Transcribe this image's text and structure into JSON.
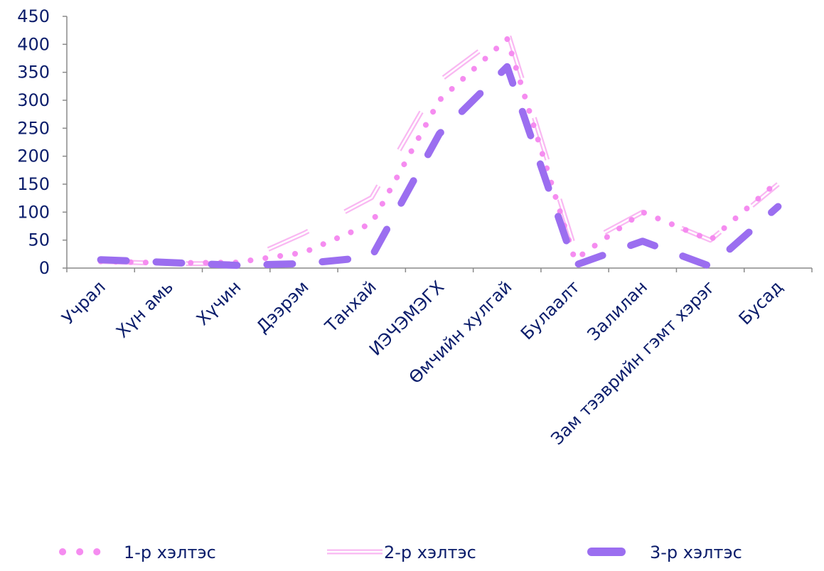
{
  "chart_data": {
    "type": "line",
    "categories": [
      "Учрал",
      "Хүн амь",
      "Хүчин",
      "Дээрэм",
      "Танхай",
      "ИЭЧЭМЭГХ",
      "Өмчийн хулгай",
      "Булаалт",
      "Залилан",
      "Зам тээврийн гэмт хэрэг",
      "Бусад"
    ],
    "series": [
      {
        "name": "1-р хэлтэс",
        "style": "dotted",
        "color": "#f58cf0",
        "values": [
          12,
          9,
          10,
          28,
          80,
          300,
          410,
          15,
          100,
          50,
          155
        ]
      },
      {
        "name": "2-р хэлтэс",
        "style": "double-line",
        "color": "#f9b8f2",
        "values": [
          12,
          8,
          8,
          62,
          126,
          335,
          425,
          35,
          100,
          50,
          150
        ]
      },
      {
        "name": "3-р хэлтэс",
        "style": "dashed",
        "color": "#9b6ef0",
        "values": [
          15,
          10,
          5,
          8,
          20,
          240,
          360,
          5,
          48,
          3,
          110
        ]
      }
    ],
    "ylim": [
      0,
      450
    ],
    "yticks": [
      0,
      50,
      100,
      150,
      200,
      250,
      300,
      350,
      400,
      450
    ],
    "legend_position": "bottom",
    "grid": false
  },
  "colors": {
    "text": "#0b1d6b",
    "axis": "#8a8a8a"
  }
}
